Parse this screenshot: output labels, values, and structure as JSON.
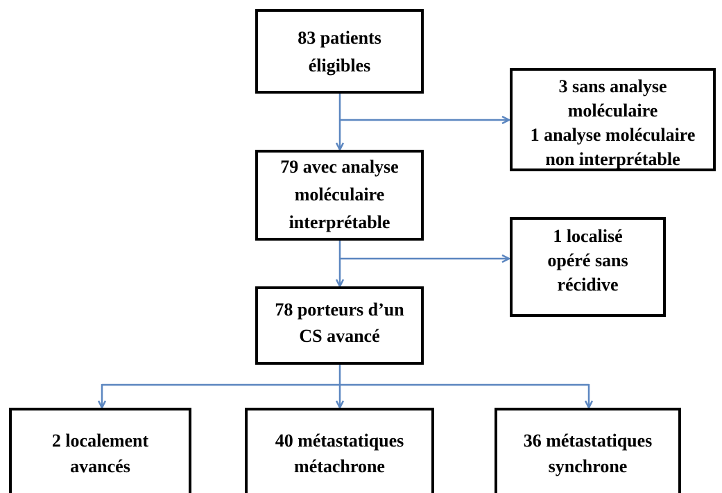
{
  "nodes": [
    {
      "lines": [
        "83 patients",
        "éligibles"
      ]
    },
    {
      "lines": [
        "3 sans analyse",
        "moléculaire",
        "1 analyse moléculaire",
        "non interprétable"
      ]
    },
    {
      "lines": [
        "79 avec analyse",
        "moléculaire",
        "interprétable"
      ]
    },
    {
      "lines": [
        "1 localisé",
        "opéré sans",
        "récidive"
      ]
    },
    {
      "lines": [
        "78 porteurs d’un",
        "CS avancé"
      ]
    },
    {
      "lines": [
        "2 localement",
        "avancés"
      ]
    },
    {
      "lines": [
        "40 métastatiques",
        "métachrone"
      ]
    },
    {
      "lines": [
        "36 métastatiques",
        "synchrone"
      ]
    }
  ]
}
